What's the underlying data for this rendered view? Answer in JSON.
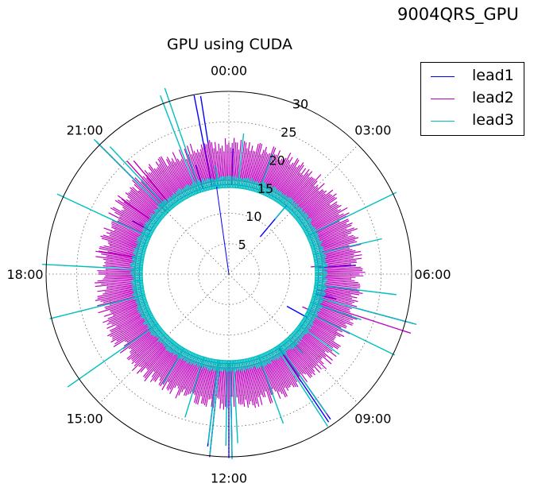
{
  "figure_title": "9004QRS_GPU",
  "chart_data": {
    "type": "polar-line",
    "title": "GPU using CUDA",
    "angular_ticks": [
      "00:00",
      "03:00",
      "06:00",
      "09:00",
      "12:00",
      "15:00",
      "18:00",
      "21:00"
    ],
    "radial_ticks": [
      5,
      10,
      15,
      20,
      25,
      30
    ],
    "rlim": [
      0,
      30
    ],
    "grid": true,
    "direction": "clockwise",
    "zero_location": "top",
    "legend_position": "upper-right-outside",
    "series": [
      {
        "name": "lead1",
        "color": "#0000ff",
        "base_r": 14.7,
        "spikes": [
          [
            2,
            20.6
          ],
          [
            40,
            8
          ],
          [
            86,
            20.9
          ],
          [
            100,
            15.8
          ],
          [
            102,
            17.5
          ],
          [
            103,
            18.1
          ],
          [
            119,
            10.9
          ],
          [
            128,
            14.8
          ],
          [
            145,
            29.1
          ],
          [
            146,
            29.3
          ],
          [
            179,
            28.2
          ],
          [
            180,
            30.2
          ],
          [
            186,
            30.2
          ],
          [
            187,
            28.5
          ],
          [
            299,
            18.1
          ],
          [
            315,
            30.8
          ],
          [
            343,
            18.7
          ],
          [
            349,
            29.9
          ],
          [
            351,
            29.6
          ]
        ]
      },
      {
        "name": "lead2",
        "color": "#bf00bf",
        "base_r": 15.4,
        "band": {
          "from_angle": 0,
          "to_angle": 360,
          "r_min": 17.3,
          "r_max": 22.4
        },
        "spikes": [
          [
            85,
            13.5
          ],
          [
            105,
            31.4
          ],
          [
            108,
            31.4
          ],
          [
            114,
            13.2
          ],
          [
            137,
            16.5
          ],
          [
            145,
            28.3
          ],
          [
            179,
            30.1
          ],
          [
            186,
            30.2
          ],
          [
            280,
            21.7
          ],
          [
            300,
            17
          ],
          [
            305,
            21.5
          ],
          [
            318,
            25
          ],
          [
            320,
            24.3
          ]
        ]
      },
      {
        "name": "lead3",
        "color": "#00bfbf",
        "base_r": 14.2,
        "band": {
          "from_angle": 0,
          "to_angle": 360,
          "r_min": 15,
          "r_max": 16.3
        },
        "spikes": [
          [
            6,
            23.2
          ],
          [
            20,
            21
          ],
          [
            40,
            11.8
          ],
          [
            64,
            30.6
          ],
          [
            77,
            25.8
          ],
          [
            97,
            27.7
          ],
          [
            105,
            31.9
          ],
          [
            109,
            23
          ],
          [
            116,
            30.3
          ],
          [
            126,
            22.4
          ],
          [
            137,
            17.8
          ],
          [
            145,
            27.9
          ],
          [
            147,
            29.8
          ],
          [
            160,
            26.1
          ],
          [
            177,
            27.8
          ],
          [
            179,
            30.4
          ],
          [
            181,
            28.2
          ],
          [
            186,
            29.9
          ],
          [
            187,
            28
          ],
          [
            197,
            24.6
          ],
          [
            211,
            21
          ],
          [
            235,
            32.3
          ],
          [
            256,
            30.3
          ],
          [
            266,
            15.7
          ],
          [
            273,
            30.7
          ],
          [
            295,
            31.1
          ],
          [
            315,
            31.3
          ],
          [
            317,
            28.6
          ],
          [
            339,
            31.4
          ],
          [
            341,
            32.3
          ],
          [
            353,
            18
          ]
        ]
      }
    ]
  }
}
